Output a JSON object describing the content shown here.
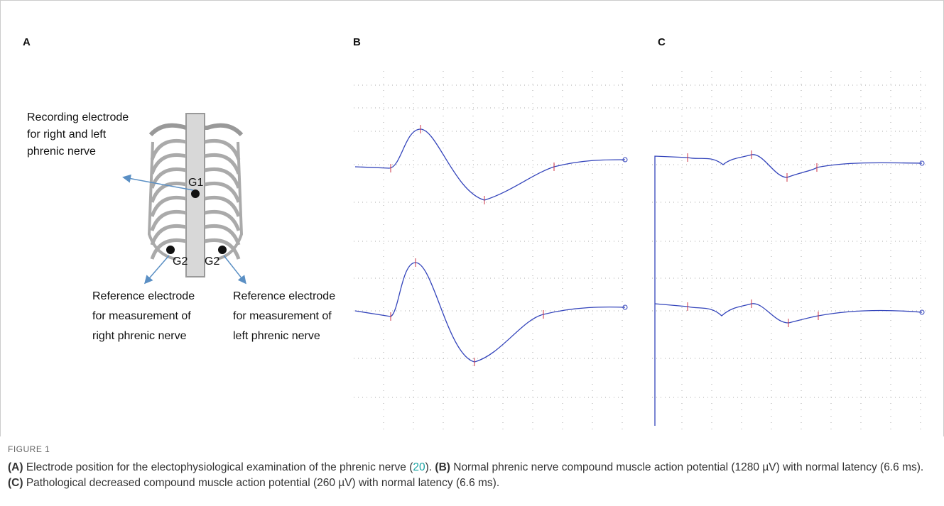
{
  "panels": {
    "a": {
      "label": "A",
      "recording": [
        "Recording electrode",
        "for right and left",
        "phrenic nerve"
      ],
      "g1": "G1",
      "g2_right": "G2",
      "g2_left": "G2",
      "reference_right": [
        "Reference electrode",
        "for measurement of",
        "right phrenic nerve"
      ],
      "reference_left": [
        "Reference electrode",
        "for measurement of",
        "left phrenic nerve"
      ]
    },
    "b": {
      "label": "B"
    },
    "c": {
      "label": "C"
    }
  },
  "caption": {
    "figure_label": "FIGURE 1",
    "segments": [
      "(A)",
      " Electrode position for the electophysiological examination of the phrenic nerve (",
      "20",
      "). ",
      "(B)",
      " Normal phrenic nerve compound muscle action potential (1280 µV) with normal latency (6.6 ms). ",
      "(C)",
      " Pathological decreased compound muscle action potential (260 µV) with normal latency (6.6 ms)."
    ]
  }
}
